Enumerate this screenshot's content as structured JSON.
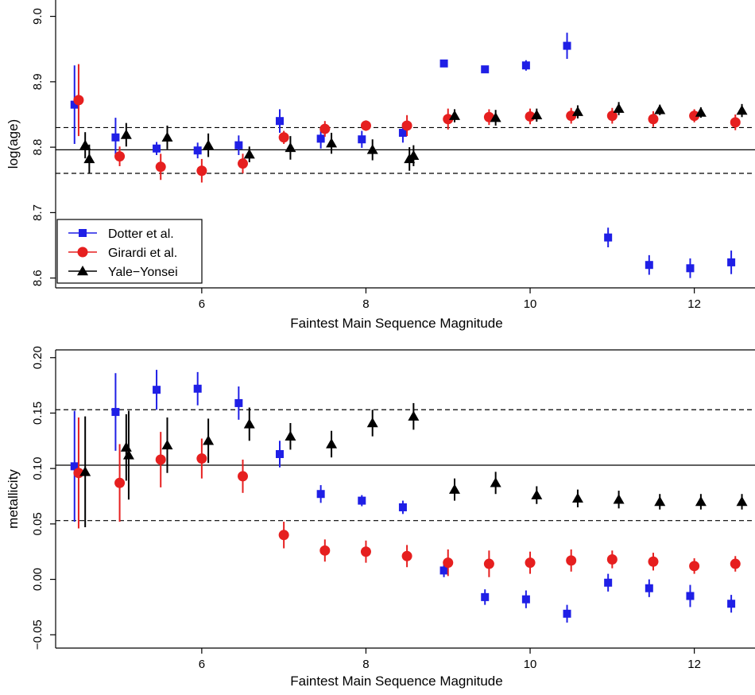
{
  "chart_data": [
    {
      "type": "scatter",
      "xlabel": "Faintest Main Sequence Magnitude",
      "ylabel": "log(age)",
      "xlim": [
        4.22,
        12.72
      ],
      "ylim": [
        8.585,
        9.025
      ],
      "xticks": [
        6,
        8,
        10,
        12
      ],
      "xtick_labels": [
        "6",
        "8",
        "10",
        "12"
      ],
      "yticks": [
        8.6,
        8.7,
        8.8,
        8.9,
        9.0
      ],
      "ytick_labels": [
        "8.6",
        "8.7",
        "8.8",
        "8.9",
        "9.0"
      ],
      "hlines": [
        {
          "y": 8.796,
          "style": "solid"
        },
        {
          "y": 8.83,
          "style": "dashed"
        },
        {
          "y": 8.76,
          "style": "dashed"
        }
      ],
      "legend": {
        "position": "bottom-left",
        "entries": [
          "Dotter et al.",
          "Girardi et al.",
          "Yale−Yonsei"
        ]
      },
      "series": [
        {
          "name": "Dotter et al.",
          "color": "#1f1fe6",
          "marker": "square",
          "offset": -0.05,
          "x": [
            4.5,
            5.0,
            5.5,
            6.0,
            6.5,
            7.0,
            7.5,
            8.0,
            8.5,
            9.0,
            9.5,
            10.0,
            10.5,
            11.0,
            11.5,
            12.0,
            12.5
          ],
          "y": [
            8.865,
            8.815,
            8.798,
            8.795,
            8.803,
            8.84,
            8.813,
            8.812,
            8.822,
            8.928,
            8.919,
            8.925,
            8.955,
            8.662,
            8.62,
            8.615,
            8.624
          ],
          "err": [
            0.06,
            0.03,
            0.01,
            0.012,
            0.015,
            0.018,
            0.015,
            0.013,
            0.015,
            0.004,
            0.004,
            0.008,
            0.02,
            0.015,
            0.015,
            0.015,
            0.018
          ]
        },
        {
          "name": "Girardi et al.",
          "color": "#e61f1f",
          "marker": "circle",
          "offset": 0.0,
          "x": [
            4.5,
            5.0,
            5.5,
            6.0,
            6.5,
            7.0,
            7.5,
            8.0,
            8.5,
            9.0,
            9.5,
            10.0,
            10.5,
            11.0,
            11.5,
            12.0,
            12.5
          ],
          "y": [
            8.872,
            8.786,
            8.77,
            8.764,
            8.775,
            8.815,
            8.828,
            8.833,
            8.833,
            8.843,
            8.846,
            8.847,
            8.848,
            8.848,
            8.843,
            8.848,
            8.838
          ],
          "err": [
            0.055,
            0.015,
            0.02,
            0.018,
            0.015,
            0.01,
            0.012,
            0.008,
            0.016,
            0.016,
            0.012,
            0.012,
            0.012,
            0.012,
            0.012,
            0.01,
            0.012
          ]
        },
        {
          "name": "Yale−Yonsei",
          "color": "#000000",
          "marker": "triangle",
          "offset": 0.08,
          "x": [
            4.5,
            5.0,
            5.5,
            6.0,
            6.5,
            7.0,
            7.5,
            8.0,
            8.5,
            9.0,
            9.5,
            10.0,
            10.5,
            11.0,
            11.5,
            12.0,
            12.5
          ],
          "y": [
            8.803,
            8.819,
            8.815,
            8.803,
            8.789,
            8.799,
            8.806,
            8.796,
            8.787,
            8.848,
            8.845,
            8.849,
            8.854,
            8.859,
            8.857,
            8.853,
            8.856
          ],
          "err": [
            0.02,
            0.018,
            0.018,
            0.018,
            0.012,
            0.018,
            0.016,
            0.016,
            0.016,
            0.01,
            0.012,
            0.01,
            0.01,
            0.01,
            0.008,
            0.008,
            0.01
          ],
          "extra_points": [
            {
              "x": 4.55,
              "y": 8.782,
              "err": 0.022
            },
            {
              "x": 8.45,
              "y": 8.782,
              "err": 0.018
            }
          ]
        }
      ]
    },
    {
      "type": "scatter",
      "xlabel": "Faintest Main Sequence Magnitude",
      "ylabel": "metallicity",
      "xlim": [
        4.22,
        12.72
      ],
      "ylim": [
        -0.062,
        0.207
      ],
      "xticks": [
        6,
        8,
        10,
        12
      ],
      "xtick_labels": [
        "6",
        "8",
        "10",
        "12"
      ],
      "yticks": [
        -0.05,
        0.0,
        0.05,
        0.1,
        0.15,
        0.2
      ],
      "ytick_labels": [
        "−0.05",
        "0.00",
        "0.05",
        "0.10",
        "0.15",
        "0.20"
      ],
      "hlines": [
        {
          "y": 0.103,
          "style": "solid"
        },
        {
          "y": 0.153,
          "style": "dashed"
        },
        {
          "y": 0.053,
          "style": "dashed"
        }
      ],
      "series": [
        {
          "name": "Dotter et al.",
          "color": "#1f1fe6",
          "marker": "square",
          "offset": -0.05,
          "x": [
            4.5,
            5.0,
            5.5,
            6.0,
            6.5,
            7.0,
            7.5,
            8.0,
            8.5,
            9.0,
            9.5,
            10.0,
            10.5,
            11.0,
            11.5,
            12.0,
            12.5
          ],
          "y": [
            0.102,
            0.151,
            0.171,
            0.172,
            0.159,
            0.113,
            0.077,
            0.071,
            0.065,
            0.008,
            -0.016,
            -0.018,
            -0.031,
            -0.003,
            -0.008,
            -0.015,
            -0.022
          ],
          "err": [
            0.05,
            0.035,
            0.018,
            0.015,
            0.015,
            0.012,
            0.008,
            0.005,
            0.006,
            0.006,
            0.007,
            0.008,
            0.008,
            0.008,
            0.008,
            0.01,
            0.008
          ]
        },
        {
          "name": "Girardi et al.",
          "color": "#e61f1f",
          "marker": "circle",
          "offset": 0.0,
          "x": [
            4.5,
            5.0,
            5.5,
            6.0,
            6.5,
            7.0,
            7.5,
            8.0,
            8.5,
            9.0,
            9.5,
            10.0,
            10.5,
            11.0,
            11.5,
            12.0,
            12.5
          ],
          "y": [
            0.096,
            0.087,
            0.108,
            0.109,
            0.093,
            0.04,
            0.026,
            0.025,
            0.021,
            0.015,
            0.014,
            0.015,
            0.017,
            0.018,
            0.016,
            0.012,
            0.014
          ],
          "err": [
            0.05,
            0.035,
            0.025,
            0.018,
            0.015,
            0.012,
            0.01,
            0.01,
            0.01,
            0.012,
            0.012,
            0.01,
            0.01,
            0.008,
            0.008,
            0.007,
            0.007
          ]
        },
        {
          "name": "Yale−Yonsei",
          "color": "#000000",
          "marker": "triangle",
          "offset": 0.08,
          "x": [
            4.5,
            5.0,
            5.5,
            6.0,
            6.5,
            7.0,
            7.5,
            8.0,
            8.5,
            9.0,
            9.5,
            10.0,
            10.5,
            11.0,
            11.5,
            12.0,
            12.5
          ],
          "y": [
            0.097,
            0.119,
            0.121,
            0.125,
            0.14,
            0.129,
            0.122,
            0.141,
            0.147,
            0.081,
            0.087,
            0.076,
            0.073,
            0.072,
            0.07,
            0.07,
            0.07
          ],
          "err": [
            0.05,
            0.03,
            0.025,
            0.02,
            0.015,
            0.012,
            0.012,
            0.012,
            0.012,
            0.01,
            0.01,
            0.008,
            0.008,
            0.008,
            0.007,
            0.007,
            0.007
          ],
          "extra_points": [
            {
              "x": 5.03,
              "y": 0.112,
              "err": 0.04
            }
          ]
        }
      ]
    }
  ]
}
